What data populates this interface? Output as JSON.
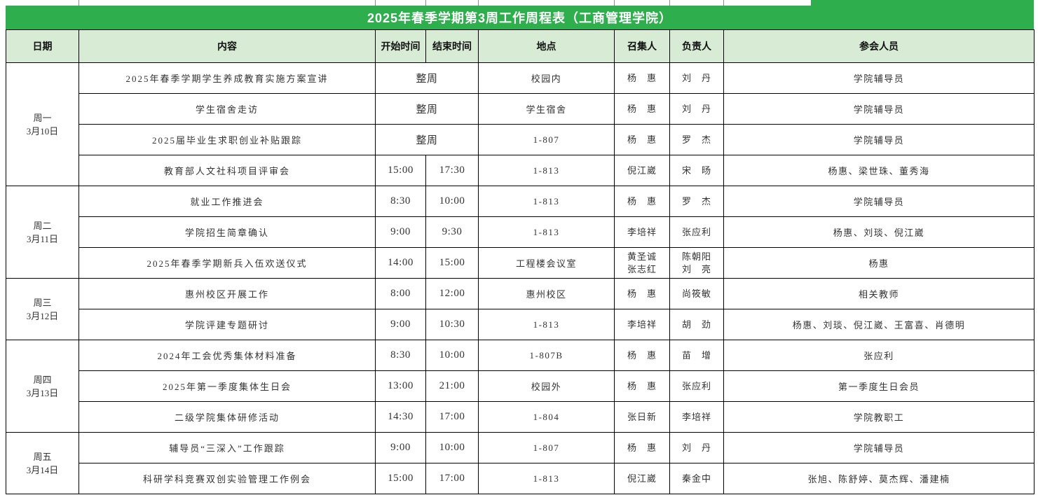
{
  "title": "2025年春季学期第3周工作周程表（工商管理学院）",
  "columns": [
    "日期",
    "内容",
    "开始时间",
    "结束时间",
    "地点",
    "召集人",
    "负责人",
    "参会人员"
  ],
  "colors": {
    "title_bg": "#2eae4c",
    "title_text": "#ffffff",
    "header_bg": "#d7ebd5",
    "grid_border": "#000000",
    "body_text": "#333333"
  },
  "days": [
    {
      "label": "周一",
      "date": "3月10日",
      "rows": [
        {
          "content": "2025年春季学期学生养成教育实施方案宣讲",
          "time_merged": "整周",
          "location": "校园内",
          "convener": "杨　惠",
          "owner": "刘　丹",
          "participants": "学院辅导员"
        },
        {
          "content": "学生宿舍走访",
          "time_merged": "整周",
          "location": "学生宿舍",
          "convener": "杨　惠",
          "owner": "刘　丹",
          "participants": "学院辅导员"
        },
        {
          "content": "2025届毕业生求职创业补贴跟踪",
          "time_merged": "整周",
          "location": "1-807",
          "convener": "杨　惠",
          "owner": "罗　杰",
          "participants": "学院辅导员"
        },
        {
          "content": "教育部人文社科项目评审会",
          "start": "15:00",
          "end": "17:30",
          "location": "1-813",
          "convener": "倪江崴",
          "owner": "宋　旸",
          "participants": "杨惠、梁世珠、董秀海"
        }
      ]
    },
    {
      "label": "周二",
      "date": "3月11日",
      "rows": [
        {
          "content": "就业工作推进会",
          "start": "8:30",
          "end": "10:00",
          "location": "1-813",
          "convener": "杨　惠",
          "owner": "罗　杰",
          "participants": "学院辅导员"
        },
        {
          "content": "学院招生简章确认",
          "start": "9:00",
          "end": "9:30",
          "location": "1-813",
          "convener": "李培祥",
          "owner": "张应利",
          "participants": "杨惠、刘琰、倪江崴"
        },
        {
          "content": "2025年春季学期新兵入伍欢送仪式",
          "start": "14:00",
          "end": "15:00",
          "location": "工程楼会议室",
          "convener": "黄圣诚\n张志红",
          "owner": "陈朝阳\n刘　亮",
          "participants": "杨惠"
        }
      ]
    },
    {
      "label": "周三",
      "date": "3月12日",
      "rows": [
        {
          "content": "惠州校区开展工作",
          "start": "8:00",
          "end": "12:00",
          "location": "惠州校区",
          "convener": "杨　惠",
          "owner": "尚筱敏",
          "participants": "相关教师"
        },
        {
          "content": "学院评建专题研讨",
          "start": "9:00",
          "end": "10:30",
          "location": "1-813",
          "convener": "李培祥",
          "owner": "胡　劲",
          "participants": "杨惠、刘琰、倪江崴、王富喜、肖德明"
        }
      ]
    },
    {
      "label": "周四",
      "date": "3月13日",
      "rows": [
        {
          "content": "2024年工会优秀集体材料准备",
          "start": "8:30",
          "end": "10:00",
          "location": "1-807B",
          "convener": "杨　惠",
          "owner": "苗　增",
          "participants": "张应利"
        },
        {
          "content": "2025年第一季度集体生日会",
          "start": "13:00",
          "end": "21:00",
          "location": "校园外",
          "convener": "杨　惠",
          "owner": "张应利",
          "participants": "第一季度生日会员"
        },
        {
          "content": "二级学院集体研修活动",
          "start": "14:30",
          "end": "17:00",
          "location": "1-804",
          "convener": "张日新",
          "owner": "李培祥",
          "participants": "学院教职工"
        }
      ]
    },
    {
      "label": "周五",
      "date": "3月14日",
      "rows": [
        {
          "content": "辅导员“三深入”工作跟踪",
          "start": "9:00",
          "end": "10:00",
          "location": "1-807",
          "convener": "杨　惠",
          "owner": "刘　丹",
          "participants": "学院辅导员"
        },
        {
          "content": "科研学科竞赛双创实验管理工作例会",
          "start": "15:00",
          "end": "17:00",
          "location": "1-813",
          "convener": "倪江崴",
          "owner": "秦金中",
          "participants": "张旭、陈舒婷、莫杰辉、潘建楠"
        }
      ]
    }
  ]
}
